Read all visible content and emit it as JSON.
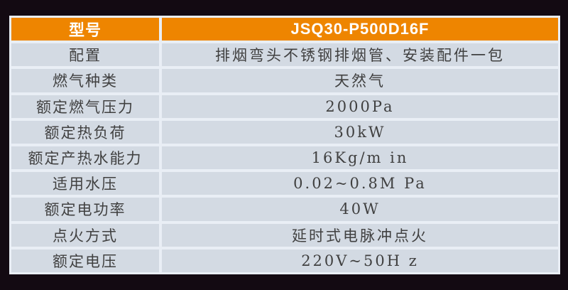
{
  "table": {
    "header": {
      "label": "型号",
      "value": "JSQ30-P500D16F"
    },
    "rows": [
      {
        "label": "配置",
        "value": "排烟弯头不锈钢排烟管、安装配件一包"
      },
      {
        "label": "燃气种类",
        "value": "天然气"
      },
      {
        "label": "额定燃气压力",
        "value": "2000Pa"
      },
      {
        "label": "额定热负荷",
        "value": "30kW"
      },
      {
        "label": "额定产热水能力",
        "value": "16Kg/m in"
      },
      {
        "label": "适用水压",
        "value": "0.02~0.8M Pa"
      },
      {
        "label": "额定电功率",
        "value": "40W"
      },
      {
        "label": "点火方式",
        "value": "延时式电脉冲点火"
      },
      {
        "label": "额定电压",
        "value": "220V~50H z"
      }
    ],
    "colors": {
      "page_bg": "#130a12",
      "frame": "#e9eef5",
      "header_bg": "#ee8500",
      "header_text": "#ffffff",
      "cell_bg": "#d3dae3",
      "cell_text": "#404040"
    }
  }
}
